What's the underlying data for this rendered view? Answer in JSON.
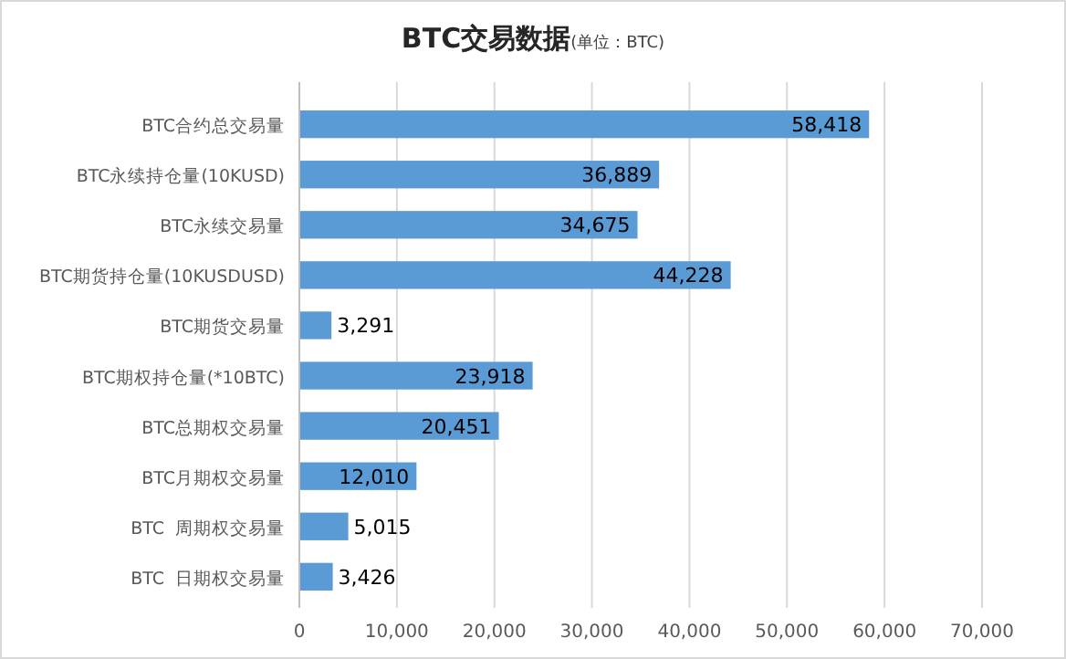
{
  "chart_data": {
    "type": "bar",
    "orientation": "horizontal",
    "title": "BTC交易数据",
    "subtitle": "(单位：BTC)",
    "categories": [
      "BTC合约总交易量",
      "BTC永续持仓量(10KUSD)",
      "BTC永续交易量",
      "BTC期货持仓量(10KUSDUSD)",
      "BTC期货交易量",
      "BTC期权持仓量(*10BTC)",
      "BTC总期权交易量",
      "BTC月期权交易量",
      "BTC  周期权交易量",
      "BTC  日期权交易量"
    ],
    "values": [
      58418,
      36889,
      34675,
      44228,
      3291,
      23918,
      20451,
      12010,
      5015,
      3426
    ],
    "value_labels": [
      "58,418",
      "36,889",
      "34,675",
      "44,228",
      "3,291",
      "23,918",
      "20,451",
      "12,010",
      "5,015",
      "3,426"
    ],
    "color": "#5b9bd5",
    "xlim": [
      0,
      70000
    ],
    "xticks": [
      {
        "value": 0,
        "label": "0"
      },
      {
        "value": 10000,
        "label": "10,000"
      },
      {
        "value": 20000,
        "label": "20,000"
      },
      {
        "value": 30000,
        "label": "30,000"
      },
      {
        "value": 40000,
        "label": "40,000"
      },
      {
        "value": 50000,
        "label": "50,000"
      },
      {
        "value": 60000,
        "label": "60,000"
      },
      {
        "value": 70000,
        "label": "70,000"
      }
    ],
    "grid": "x"
  }
}
